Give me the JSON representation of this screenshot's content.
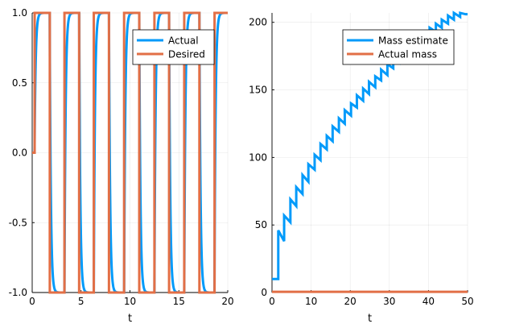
{
  "chart_data": [
    {
      "type": "line",
      "xlabel": "t",
      "ylabel": "",
      "xlim": [
        0,
        20
      ],
      "ylim": [
        -1,
        1
      ],
      "xticks": [
        0,
        5,
        10,
        15,
        20
      ],
      "yticks": [
        -1.0,
        -0.5,
        0.0,
        0.5,
        1.0
      ],
      "xtick_labels": [
        "0",
        "5",
        "10",
        "15",
        "20"
      ],
      "ytick_labels": [
        "-1.0",
        "-0.5",
        "0.0",
        "0.5",
        "1.0"
      ],
      "grid": true,
      "legend_position": "top-right",
      "series": [
        {
          "name": "Actual",
          "color": "#009AFA",
          "kind": "first_order_tracking",
          "tau": 0.12,
          "initial": 0.0
        },
        {
          "name": "Desired",
          "color": "#E26F46",
          "kind": "square_wave",
          "switch_times": [
            0.25,
            1.8,
            3.3,
            4.8,
            6.3,
            7.85,
            9.4,
            10.95,
            12.5,
            14.0,
            15.55,
            17.1,
            18.65,
            20.0
          ],
          "levels": [
            1,
            -1,
            1,
            -1,
            1,
            -1,
            1,
            -1,
            1,
            -1,
            1,
            -1,
            1
          ]
        }
      ]
    },
    {
      "type": "line",
      "xlabel": "t",
      "ylabel": "",
      "xlim": [
        0,
        50
      ],
      "ylim": [
        0,
        207
      ],
      "xticks": [
        0,
        10,
        20,
        30,
        40,
        50
      ],
      "yticks": [
        0,
        50,
        100,
        150,
        200
      ],
      "xtick_labels": [
        "0",
        "10",
        "20",
        "30",
        "40",
        "50"
      ],
      "ytick_labels": [
        "0",
        "50",
        "100",
        "150",
        "200"
      ],
      "grid": true,
      "legend_position": "top-right",
      "series": [
        {
          "name": "Mass estimate",
          "color": "#009AFA",
          "kind": "step",
          "x": [
            0,
            1.6,
            1.6,
            3.1,
            3.1,
            4.7,
            4.7,
            6.2,
            6.2,
            7.8,
            7.8,
            9.3,
            9.3,
            10.9,
            10.9,
            12.4,
            12.4,
            14.0,
            14.0,
            15.5,
            15.5,
            17.1,
            17.1,
            18.6,
            18.6,
            20.2,
            20.2,
            21.7,
            21.7,
            23.3,
            23.3,
            24.8,
            24.8,
            26.4,
            26.4,
            27.9,
            27.9,
            29.5,
            29.5,
            31.0,
            31.0,
            32.6,
            32.6,
            34.1,
            34.1,
            35.7,
            35.7,
            37.2,
            37.2,
            38.8,
            38.8,
            40.3,
            40.3,
            41.9,
            41.9,
            43.4,
            43.4,
            45.0,
            45.0,
            46.5,
            46.5,
            48.1,
            48.1,
            49.5,
            49.5,
            50.0
          ],
          "y": [
            10,
            10,
            46,
            38,
            57,
            52,
            69,
            64,
            78,
            73,
            87,
            82,
            95,
            91,
            102,
            98,
            110,
            106,
            116,
            112,
            123,
            119,
            129,
            125,
            135,
            131,
            140,
            137,
            146,
            142,
            151,
            147,
            156,
            152,
            160,
            157,
            165,
            161,
            169,
            166,
            173,
            170,
            177,
            174,
            181,
            178,
            185,
            182,
            189,
            186,
            192,
            189,
            196,
            193,
            199,
            196,
            202,
            199,
            205,
            202,
            207,
            204,
            207,
            206,
            206,
            206
          ]
        },
        {
          "name": "Actual mass",
          "color": "#E26F46",
          "kind": "line",
          "x": [
            0,
            50
          ],
          "y": [
            0.5,
            0.5
          ]
        }
      ]
    }
  ]
}
